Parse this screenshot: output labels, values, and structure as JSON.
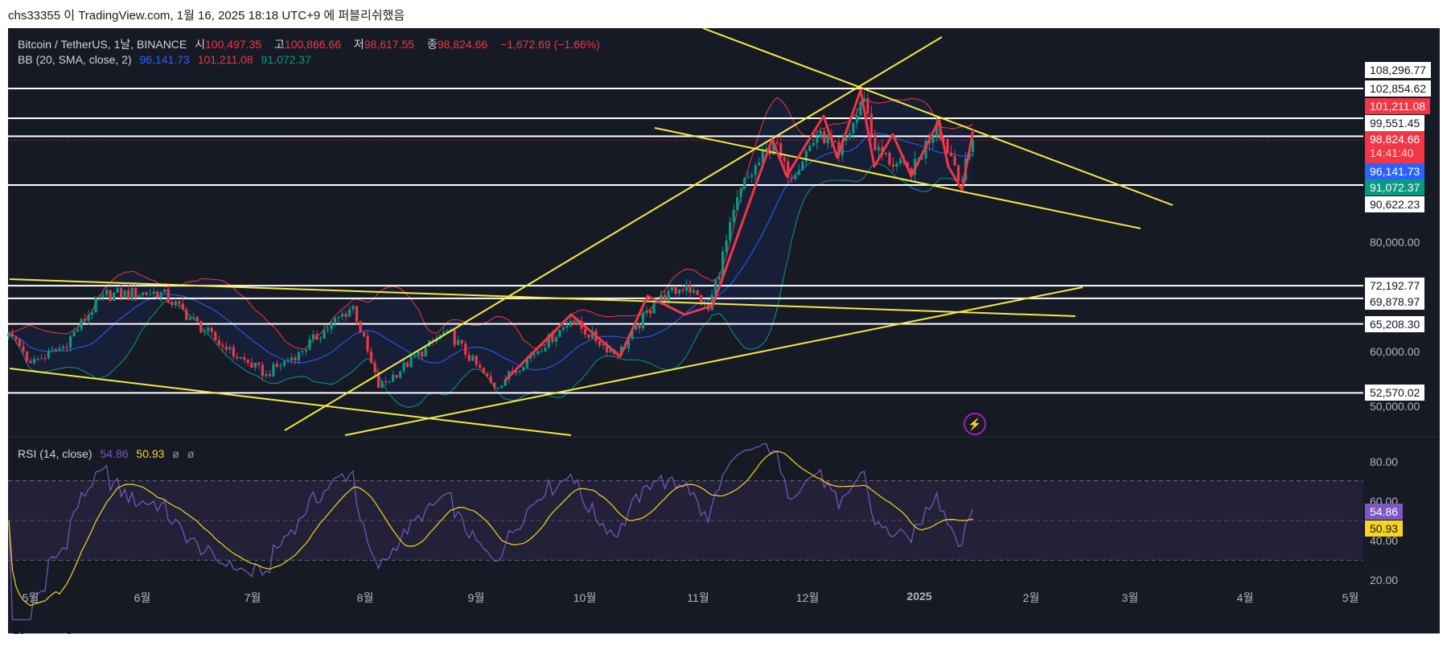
{
  "published": "chs33355 이 TradingView.com, 1월 16, 2025 18:18 UTC+9 에 퍼블리쉬했음",
  "legend": {
    "symbol": "Bitcoin / TetherUS, 1날, BINANCE",
    "o_label": "시",
    "o": "100,497.35",
    "h_label": "고",
    "h": "100,866.66",
    "l_label": "저",
    "l": "98,617.55",
    "c_label": "종",
    "c": "98,824.66",
    "change": "−1,672.69 (−1.66%)",
    "bb_name": "BB (20, SMA, close, 2)",
    "bb_basis": "96,141.73",
    "bb_upper": "101,211.08",
    "bb_lower": "91,072.37",
    "rsi_name": "RSI (14, close)",
    "rsi_value": "54.86",
    "rsi_ma": "50.93",
    "rsi_extra1": "ø",
    "rsi_extra2": "ø"
  },
  "price_axis": {
    "level_labels": [
      "108,296.77",
      "102,854.62",
      "99,551.45",
      "90,622.23",
      "72,192.77",
      "69,878.97",
      "65,208.30",
      "52,570.02"
    ],
    "ticks": [
      "80,000.00",
      "60,000.00",
      "50,000.00"
    ],
    "bb_upper": "101,211.08",
    "last_price": "98,824.66",
    "countdown": "14:41:40",
    "bb_basis": "96,141.73",
    "bb_lower": "91,072.37"
  },
  "rsi_axis": {
    "ticks": [
      "80.00",
      "60.00",
      "40.00",
      "20.00"
    ],
    "rsi": "54.86",
    "rsi_ma": "50.93"
  },
  "time_axis": [
    "5월",
    "6월",
    "7월",
    "8월",
    "9월",
    "10월",
    "11월",
    "12월",
    "2025",
    "2월",
    "3월",
    "4월",
    "5월"
  ],
  "footer": {
    "brand": "TradingView"
  },
  "colors": {
    "up": "#089981",
    "down": "#f23645",
    "bb_basis": "#2962ff",
    "bb_upper": "#f23645",
    "bb_lower": "#089981",
    "rsi": "#7e57c2",
    "rsi_ma": "#f7d51d",
    "trend": "#f7e93b",
    "zigzag": "#f23645"
  },
  "chart_data": {
    "type": "candlestick",
    "title": "Bitcoin / TetherUS, 1D, BINANCE",
    "ylim": [
      47000,
      112000
    ],
    "horizontal_levels": [
      108296.77,
      102854.62,
      99551.45,
      90622.23,
      72192.77,
      69878.97,
      65208.3,
      52570.02
    ],
    "last_close": 98824.66,
    "price_path": [
      [
        "2024-04-25",
        63500
      ],
      [
        "2024-05-01",
        58000
      ],
      [
        "2024-05-10",
        61000
      ],
      [
        "2024-05-21",
        70500
      ],
      [
        "2024-06-06",
        71000
      ],
      [
        "2024-06-24",
        60500
      ],
      [
        "2024-07-05",
        56000
      ],
      [
        "2024-07-14",
        60000
      ],
      [
        "2024-07-29",
        68500
      ],
      [
        "2024-08-05",
        53500
      ],
      [
        "2024-08-24",
        64000
      ],
      [
        "2024-09-06",
        53500
      ],
      [
        "2024-09-27",
        65800
      ],
      [
        "2024-10-10",
        59500
      ],
      [
        "2024-10-20",
        69000
      ],
      [
        "2024-10-29",
        72300
      ],
      [
        "2024-11-04",
        67800
      ],
      [
        "2024-11-13",
        90000
      ],
      [
        "2024-11-22",
        98500
      ],
      [
        "2024-11-26",
        92000
      ],
      [
        "2024-12-05",
        100500
      ],
      [
        "2024-12-10",
        96000
      ],
      [
        "2024-12-17",
        106500
      ],
      [
        "2024-12-20",
        97000
      ],
      [
        "2024-12-30",
        92500
      ],
      [
        "2025-01-06",
        102000
      ],
      [
        "2025-01-13",
        91500
      ],
      [
        "2025-01-16",
        98824.66
      ]
    ],
    "rsi_levels": [
      70,
      50,
      30
    ],
    "rsi_ylim": [
      15,
      90
    ]
  }
}
